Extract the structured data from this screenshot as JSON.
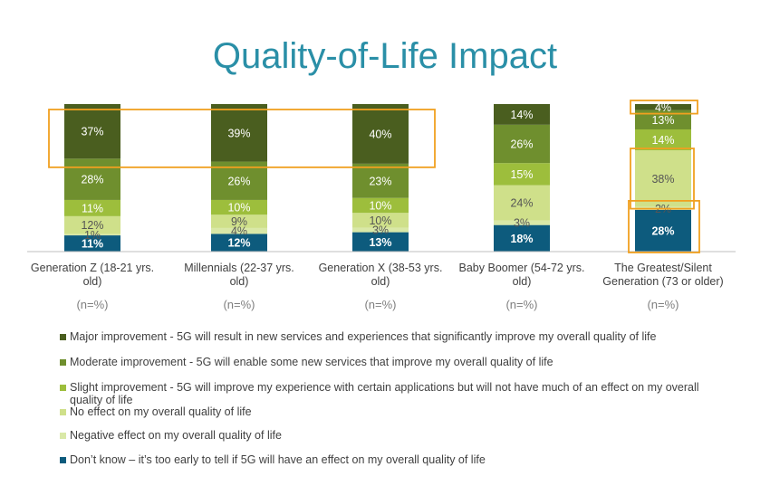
{
  "chart_data": {
    "type": "bar",
    "stacked": true,
    "orientation": "vertical",
    "title": "Quality-of-Life Impact",
    "categories": [
      "Generation Z (18-21 yrs. old)",
      "Millennials (22-37 yrs. old)",
      "Generation X (38-53 yrs. old)",
      "Baby Boomer (54-72 yrs. old)",
      "The Greatest/Silent Generation (73 or older)"
    ],
    "category_lines": [
      [
        "Generation Z (18-21 yrs.",
        "old)"
      ],
      [
        "Millennials (22-37 yrs.",
        "old)"
      ],
      [
        "Generation X (38-53 yrs.",
        "old)"
      ],
      [
        "Baby Boomer (54-72 yrs.",
        "old)"
      ],
      [
        "The Greatest/Silent",
        "Generation (73 or older)"
      ]
    ],
    "sample_note": "(n=%)",
    "series": [
      {
        "name": "Don’t know – it’s too early to tell if 5G will have an effect on my overall quality of life",
        "color": "#0d5b7d",
        "values": [
          11,
          12,
          13,
          18,
          28
        ]
      },
      {
        "name": "Negative effect on my overall quality of life",
        "color": "#d9e8a7",
        "values": [
          1,
          4,
          3,
          3,
          2
        ]
      },
      {
        "name": "No effect on my overall quality of life",
        "color": "#cfe08a",
        "values": [
          12,
          9,
          10,
          24,
          38
        ]
      },
      {
        "name": "Slight improvement - 5G will improve my experience with certain applications but will not have much of an effect on my overall quality of life",
        "color": "#9dbe3c",
        "values": [
          11,
          10,
          10,
          15,
          14
        ]
      },
      {
        "name": "Moderate improvement - 5G will enable some new services that improve my overall quality of life",
        "color": "#6f8f2e",
        "values": [
          28,
          26,
          23,
          26,
          13
        ]
      },
      {
        "name": "Major improvement - 5G will result in new services and experiences that significantly improve my overall quality of life",
        "color": "#4a5e1f",
        "values": [
          37,
          39,
          40,
          14,
          4
        ]
      }
    ],
    "value_format": "%",
    "highlight_color": "#f0a020",
    "legend_position": "bottom",
    "grid": false
  },
  "legend_order": [
    5,
    4,
    3,
    2,
    1,
    0
  ]
}
